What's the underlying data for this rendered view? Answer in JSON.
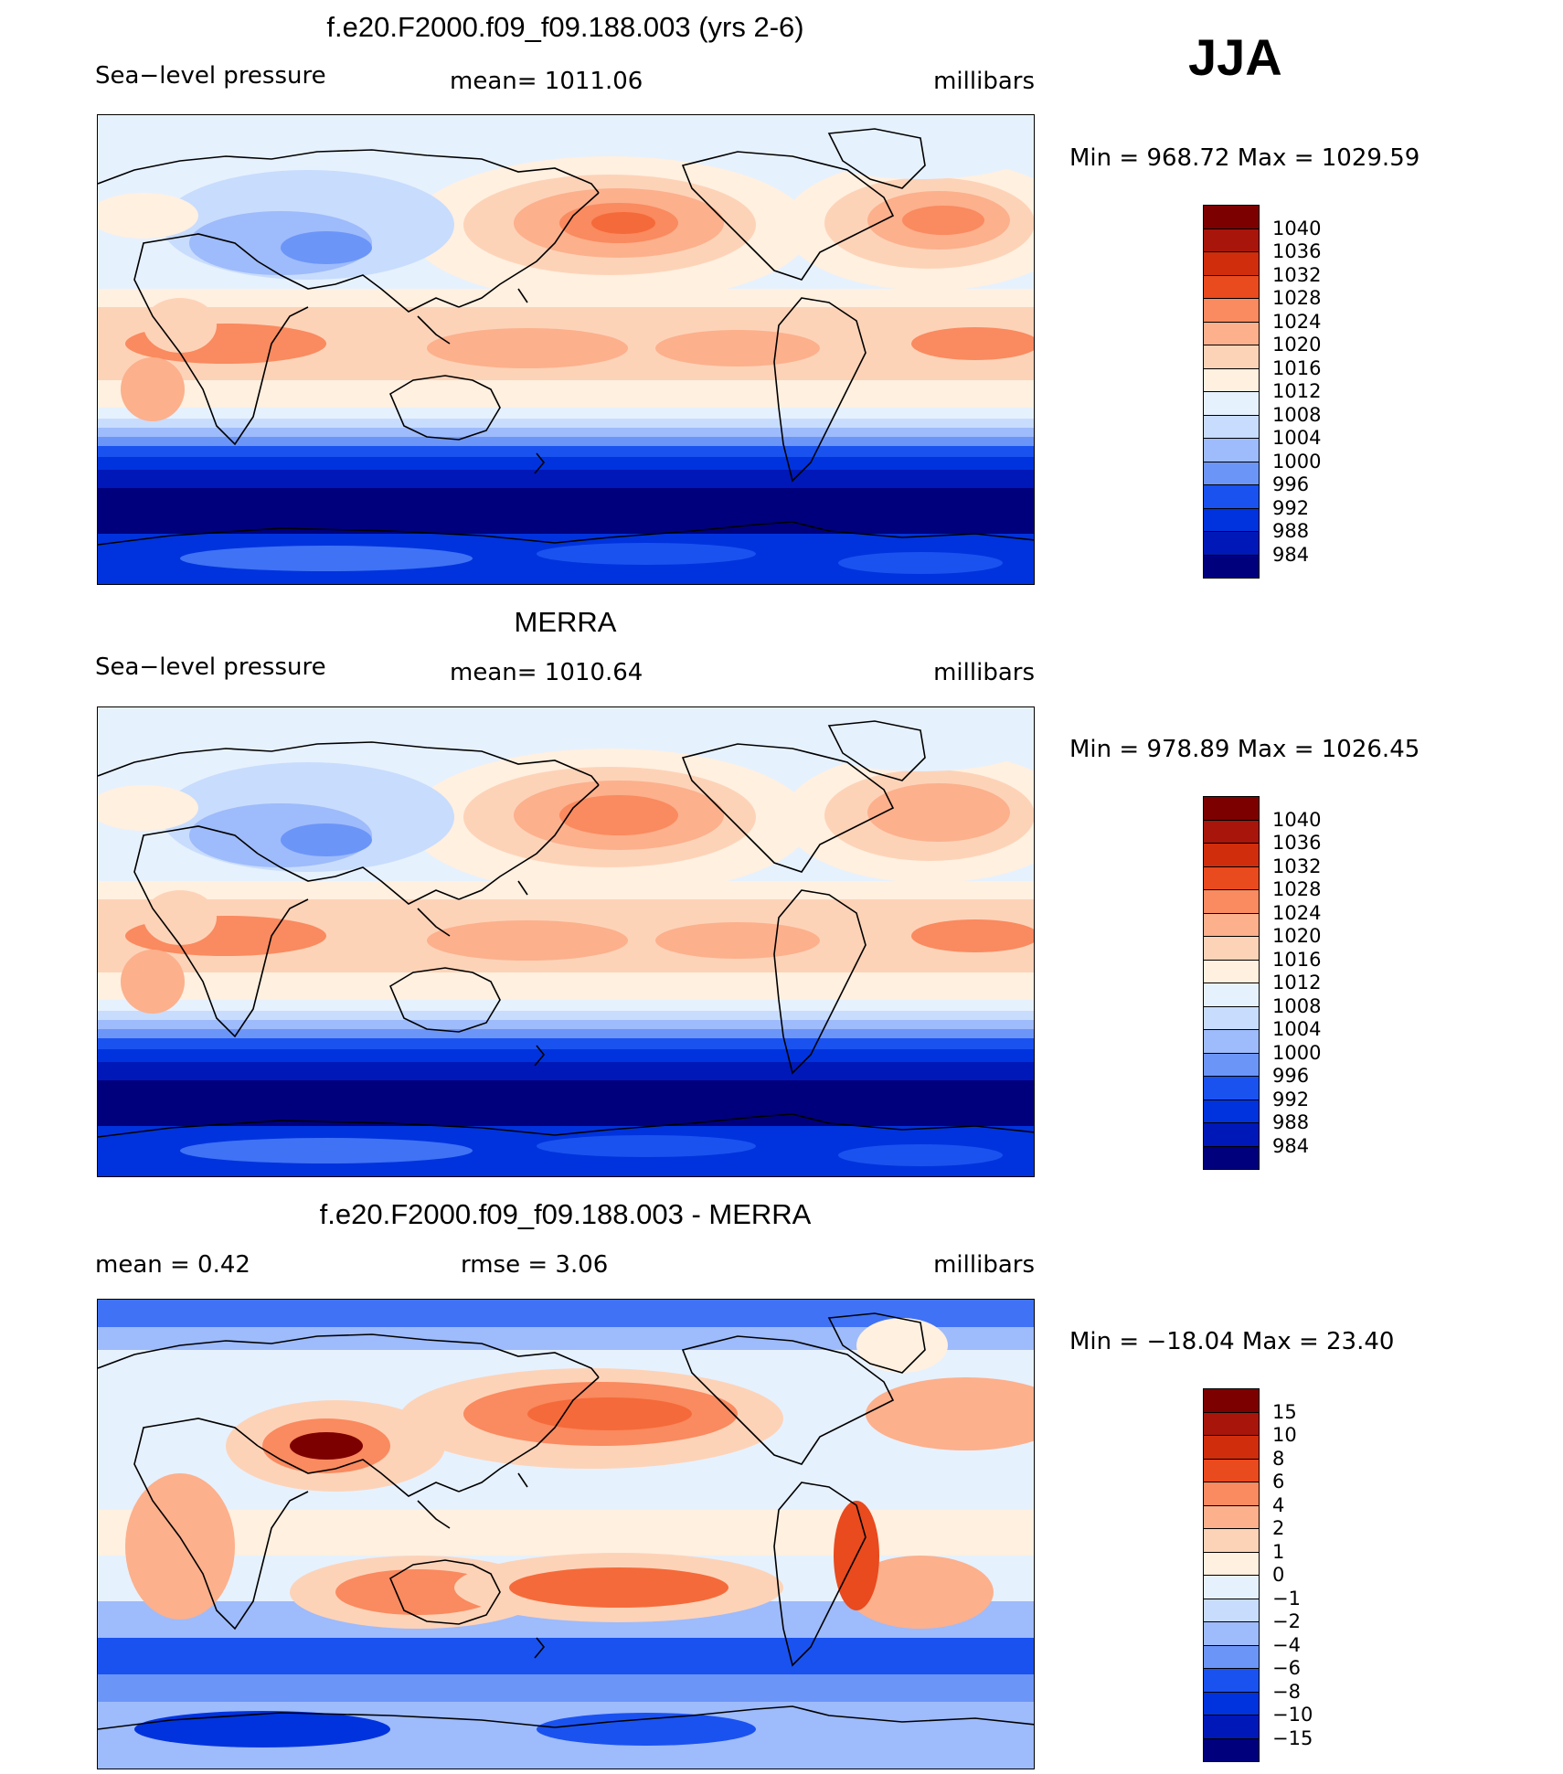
{
  "season": "JJA",
  "colors": {
    "abs": [
      "#00007d",
      "#0018b8",
      "#0033dd",
      "#1a52f0",
      "#3f72f5",
      "#6c95f8",
      "#9ebbfb",
      "#c8dcfd",
      "#e6f1fe",
      "#fff0e0",
      "#fdd3b8",
      "#fcb08c",
      "#fa8a5f",
      "#f56a3a",
      "#e94a1e",
      "#cf2d0c",
      "#a8150a",
      "#7d0000"
    ],
    "diff": [
      "#00007d",
      "#0018b8",
      "#0033dd",
      "#1a52f0",
      "#3f72f5",
      "#6c95f8",
      "#9ebbfb",
      "#c8dcfd",
      "#e6f1fe",
      "#fff0e0",
      "#fdd3b8",
      "#fcb08c",
      "#fa8a5f",
      "#f56a3a",
      "#e94a1e",
      "#cf2d0c",
      "#a8150a",
      "#7d0000"
    ]
  },
  "chart_data": [
    {
      "type": "heatmap",
      "title": "f.e20.F2000.f09_f09.188.003 (yrs 2-6)",
      "variable": "Sea−level pressure",
      "stat_text": "mean=  1011.06",
      "units": "millibars",
      "minmax_text": "Min  =  968.72  Max  =  1029.59",
      "colorbar_levels": [
        "1040",
        "1036",
        "1032",
        "1028",
        "1024",
        "1020",
        "1016",
        "1012",
        "1008",
        "1004",
        "1000",
        "996",
        "992",
        "988",
        "984"
      ]
    },
    {
      "type": "heatmap",
      "title": "MERRA",
      "variable": "Sea−level pressure",
      "stat_text": "mean=  1010.64",
      "units": "millibars",
      "minmax_text": "Min  =  978.89  Max  =  1026.45",
      "colorbar_levels": [
        "1040",
        "1036",
        "1032",
        "1028",
        "1024",
        "1020",
        "1016",
        "1012",
        "1008",
        "1004",
        "1000",
        "996",
        "992",
        "988",
        "984"
      ]
    },
    {
      "type": "heatmap",
      "title": "f.e20.F2000.f09_f09.188.003 - MERRA",
      "stat_left": "mean  =     0.42",
      "stat_text": "rmse  =     3.06",
      "units": "millibars",
      "minmax_text": "Min  =  −18.04  Max  =    23.40",
      "colorbar_levels": [
        "15",
        "10",
        "8",
        "6",
        "4",
        "2",
        "1",
        "0",
        "−1",
        "−2",
        "−4",
        "−6",
        "−8",
        "−10",
        "−15"
      ]
    }
  ]
}
